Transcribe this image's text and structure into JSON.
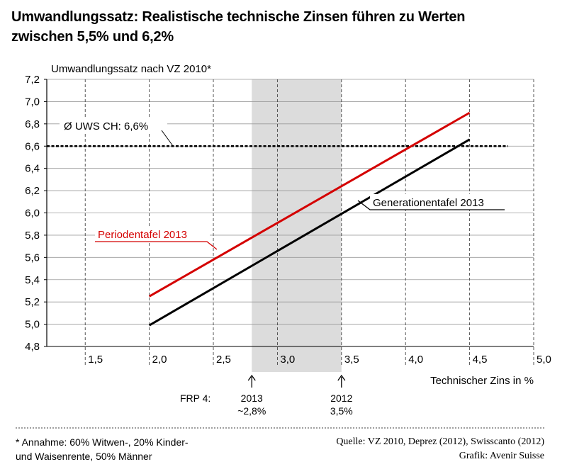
{
  "header": {
    "title_line1": "Umwandlungssatz: Realistische technische Zinsen führen zu Werten",
    "title_line2": "zwischen 5,5% und 6,2%"
  },
  "footer": {
    "note_line1": "* Annahme: 60% Witwen-, 20% Kinder-",
    "note_line2": "und Waisenrente, 50% Männer",
    "source_line1": "Quelle: VZ 2010, Deprez (2012), Swisscanto (2012)",
    "source_line2": "Grafik: Avenir Suisse"
  },
  "colors": {
    "period": "#d40000",
    "generation": "#000000",
    "band": "#dcdcdc",
    "avg": "#000000"
  },
  "chart_data": {
    "type": "line",
    "ylabel": "Umwandlungssatz nach VZ 2010*",
    "xlabel": "Technischer Zins in %",
    "xlim": [
      1.2,
      5.0
    ],
    "ylim": [
      4.8,
      7.2
    ],
    "x_ticks": [
      1.5,
      2.0,
      2.5,
      3.0,
      3.5,
      4.0,
      4.5,
      5.0
    ],
    "x_tick_labels": [
      "1,5",
      "2,0",
      "2,5",
      "3,0",
      "3,5",
      "4,0",
      "4,5",
      "5,0"
    ],
    "y_ticks": [
      4.8,
      5.0,
      5.2,
      5.4,
      5.6,
      5.8,
      6.0,
      6.2,
      6.4,
      6.6,
      6.8,
      7.0,
      7.2
    ],
    "y_tick_labels": [
      "4,8",
      "5,0",
      "5,2",
      "5,4",
      "5,6",
      "5,8",
      "6,0",
      "6,2",
      "6,4",
      "6,6",
      "6,8",
      "7,0",
      "7,2"
    ],
    "grid": "dashed vertical gridlines, solid horizontal gridlines",
    "series": [
      {
        "name": "Periodentafel 2013",
        "color": "#d40000",
        "x": [
          2.0,
          4.5
        ],
        "y": [
          5.25,
          6.9
        ]
      },
      {
        "name": "Generationentafel 2013",
        "color": "#000000",
        "x": [
          2.0,
          4.5
        ],
        "y": [
          4.99,
          6.66
        ]
      }
    ],
    "reference_line": {
      "label": "Ø UWS CH: 6,6%",
      "y": 6.6,
      "x_from": 1.2,
      "x_to": 4.8
    },
    "shaded_band": {
      "x_from": 2.8,
      "x_to": 3.5
    },
    "markers": {
      "title": "FRP 4:",
      "items": [
        {
          "x": 2.8,
          "line1": "2013",
          "line2": "~2,8%"
        },
        {
          "x": 3.5,
          "line1": "2012",
          "line2": "3,5%"
        }
      ]
    }
  }
}
